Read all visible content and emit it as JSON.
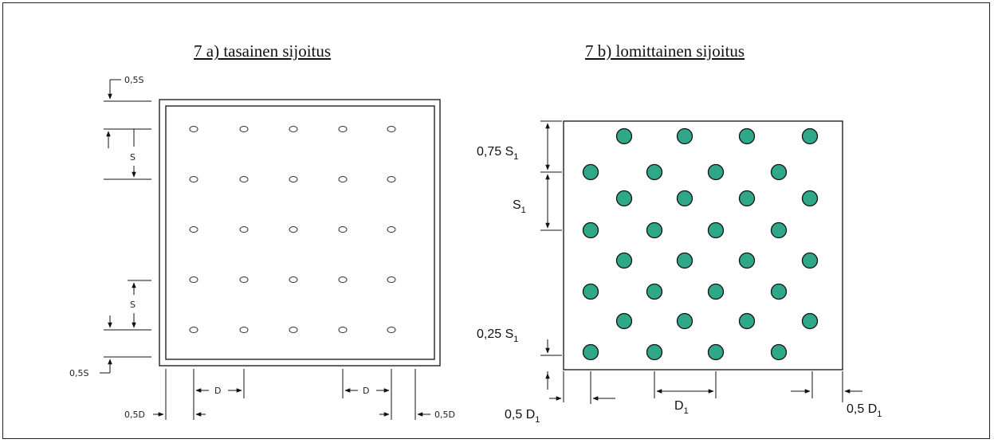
{
  "titles": {
    "a": "7 a) tasainen sijoitus",
    "b": "7 b) lomittainen sijoitus"
  },
  "panel_a": {
    "labels": {
      "top_edge": "0,5S",
      "spacing_top": "S",
      "spacing_bottom": "S",
      "bottom_edge": "0,5S",
      "d_left": "D",
      "d_right": "D",
      "left_edge": "0,5D",
      "right_edge": "0,5D"
    },
    "grid": {
      "rows": 5,
      "cols": 5
    }
  },
  "panel_b": {
    "labels": {
      "top_offset": "0,75 S",
      "top_offset_sub": "1",
      "spacing": "S",
      "spacing_sub": "1",
      "bottom_offset": "0,25 S",
      "bottom_offset_sub": "1",
      "d_mid": "D",
      "d_mid_sub": "1",
      "left_edge": "0,5 D",
      "left_edge_sub": "1",
      "right_edge": "0,5 D",
      "right_edge_sub": "1"
    },
    "grid": {
      "rows": 8,
      "cols": 4
    },
    "dot_color": "#2fa88a"
  },
  "colors": {
    "line": "#111111",
    "frame": "#222222"
  }
}
